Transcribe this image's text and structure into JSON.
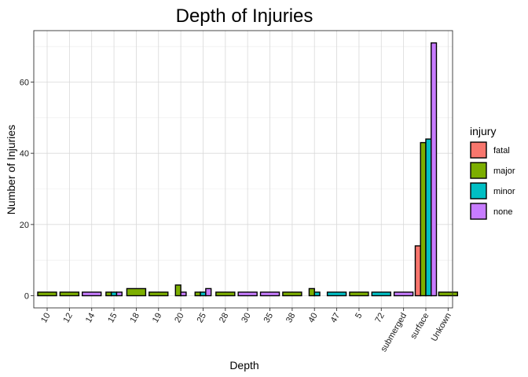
{
  "chart_data": {
    "type": "bar",
    "title": "Depth of Injuries",
    "xlabel": "Depth",
    "ylabel": "Number of Injuries",
    "ylim": [
      0,
      75
    ],
    "yticks": [
      0,
      20,
      40,
      60
    ],
    "grid": true,
    "legend": {
      "title": "injury",
      "position": "right"
    },
    "categories": [
      "10",
      "12",
      "14",
      "15",
      "18",
      "19",
      "20",
      "25",
      "28",
      "30",
      "35",
      "38",
      "40",
      "47",
      "5",
      "72",
      "submerged",
      "surface",
      "Unkown"
    ],
    "series": [
      {
        "name": "fatal",
        "color": "#F8766D"
      },
      {
        "name": "major",
        "color": "#7CAE00"
      },
      {
        "name": "minor",
        "color": "#00BFC4"
      },
      {
        "name": "none",
        "color": "#C77CFF"
      }
    ],
    "bars": [
      {
        "category": "10",
        "injury": "major",
        "value": 1
      },
      {
        "category": "12",
        "injury": "major",
        "value": 1
      },
      {
        "category": "14",
        "injury": "none",
        "value": 1
      },
      {
        "category": "15",
        "injury": "major",
        "value": 1
      },
      {
        "category": "15",
        "injury": "minor",
        "value": 1
      },
      {
        "category": "15",
        "injury": "none",
        "value": 1
      },
      {
        "category": "18",
        "injury": "major",
        "value": 2
      },
      {
        "category": "19",
        "injury": "major",
        "value": 1
      },
      {
        "category": "20",
        "injury": "major",
        "value": 3
      },
      {
        "category": "20",
        "injury": "none",
        "value": 1
      },
      {
        "category": "25",
        "injury": "major",
        "value": 1
      },
      {
        "category": "25",
        "injury": "minor",
        "value": 1
      },
      {
        "category": "25",
        "injury": "none",
        "value": 2
      },
      {
        "category": "28",
        "injury": "major",
        "value": 1
      },
      {
        "category": "30",
        "injury": "none",
        "value": 1
      },
      {
        "category": "35",
        "injury": "none",
        "value": 1
      },
      {
        "category": "38",
        "injury": "major",
        "value": 1
      },
      {
        "category": "40",
        "injury": "major",
        "value": 2
      },
      {
        "category": "40",
        "injury": "minor",
        "value": 1
      },
      {
        "category": "47",
        "injury": "minor",
        "value": 1
      },
      {
        "category": "5",
        "injury": "major",
        "value": 1
      },
      {
        "category": "72",
        "injury": "minor",
        "value": 1
      },
      {
        "category": "submerged",
        "injury": "none",
        "value": 1
      },
      {
        "category": "surface",
        "injury": "fatal",
        "value": 14
      },
      {
        "category": "surface",
        "injury": "major",
        "value": 43
      },
      {
        "category": "surface",
        "injury": "minor",
        "value": 44
      },
      {
        "category": "surface",
        "injury": "none",
        "value": 71
      },
      {
        "category": "Unkown",
        "injury": "major",
        "value": 1
      }
    ]
  }
}
